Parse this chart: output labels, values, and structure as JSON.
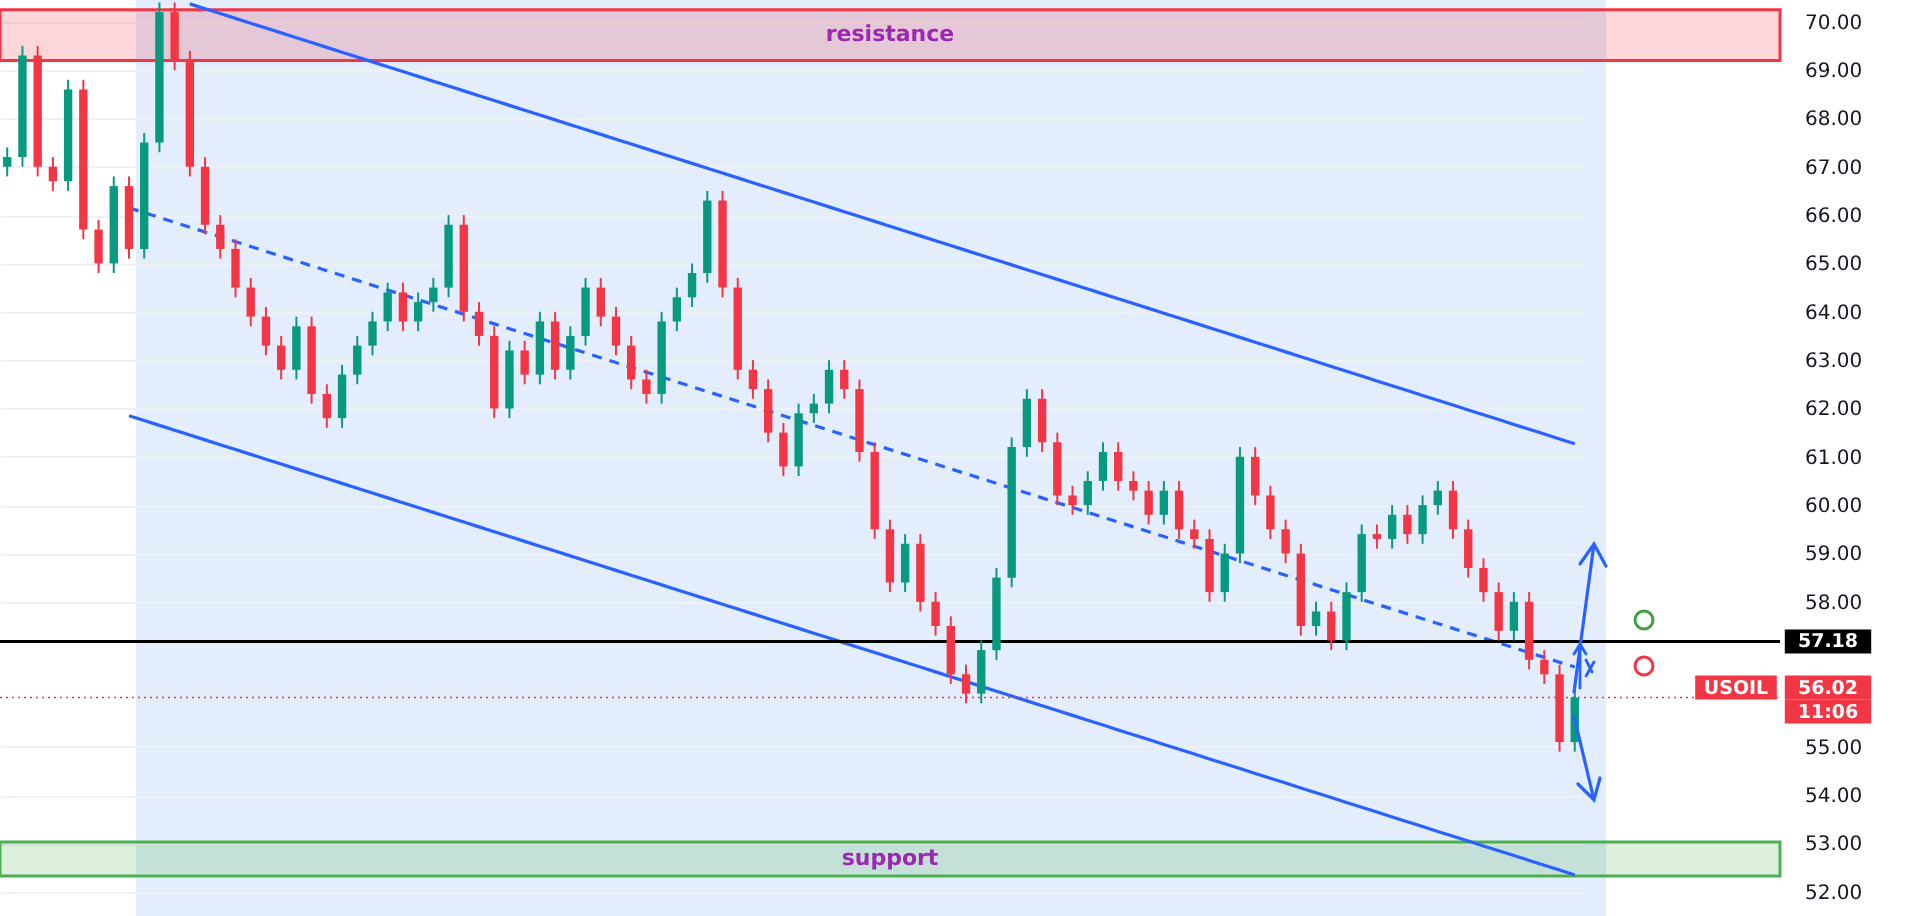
{
  "chart_data": {
    "type": "candlestick",
    "categories": [
      null,
      null,
      null,
      null,
      null,
      null,
      null,
      null,
      null,
      null,
      null,
      null,
      null,
      null,
      null,
      null,
      null,
      null,
      null,
      null,
      null,
      null,
      null,
      null,
      null,
      null,
      null,
      null,
      null,
      null,
      null,
      null,
      null,
      null,
      null,
      null,
      null,
      null,
      null,
      null,
      null,
      null,
      null,
      null,
      null,
      null,
      null,
      null,
      null,
      null,
      null,
      null,
      null,
      null,
      null,
      null,
      null,
      null,
      null,
      null,
      null,
      null,
      null,
      null,
      null,
      null,
      null,
      null,
      null,
      null,
      null,
      null,
      null,
      null,
      null,
      null,
      null,
      null,
      null,
      null,
      null,
      null,
      null,
      null,
      null,
      null,
      null,
      null,
      null,
      null,
      null,
      null,
      null,
      null,
      null,
      null,
      null,
      null,
      null,
      null,
      null,
      null,
      null,
      null
    ],
    "ohlc": [
      [
        67.0,
        67.4,
        66.8,
        67.2
      ],
      [
        67.2,
        69.5,
        67.0,
        69.3
      ],
      [
        69.3,
        69.5,
        66.8,
        67.0
      ],
      [
        67.0,
        67.2,
        66.5,
        66.7
      ],
      [
        66.7,
        68.8,
        66.5,
        68.6
      ],
      [
        68.6,
        68.8,
        65.5,
        65.7
      ],
      [
        65.7,
        65.9,
        64.8,
        65.0
      ],
      [
        65.0,
        66.8,
        64.8,
        66.6
      ],
      [
        66.6,
        66.8,
        65.1,
        65.3
      ],
      [
        65.3,
        67.7,
        65.1,
        67.5
      ],
      [
        67.5,
        70.4,
        67.3,
        70.2
      ],
      [
        70.2,
        70.4,
        69.0,
        69.2
      ],
      [
        69.2,
        69.4,
        66.8,
        67.0
      ],
      [
        67.0,
        67.2,
        65.6,
        65.8
      ],
      [
        65.8,
        66.0,
        65.1,
        65.3
      ],
      [
        65.3,
        65.5,
        64.3,
        64.5
      ],
      [
        64.5,
        64.7,
        63.7,
        63.9
      ],
      [
        63.9,
        64.1,
        63.1,
        63.3
      ],
      [
        63.3,
        63.5,
        62.6,
        62.8
      ],
      [
        62.8,
        63.9,
        62.6,
        63.7
      ],
      [
        63.7,
        63.9,
        62.1,
        62.3
      ],
      [
        62.3,
        62.5,
        61.6,
        61.8
      ],
      [
        61.8,
        62.9,
        61.6,
        62.7
      ],
      [
        62.7,
        63.5,
        62.5,
        63.3
      ],
      [
        63.3,
        64.0,
        63.1,
        63.8
      ],
      [
        63.8,
        64.6,
        63.6,
        64.4
      ],
      [
        64.4,
        64.6,
        63.6,
        63.8
      ],
      [
        63.8,
        64.4,
        63.6,
        64.2
      ],
      [
        64.2,
        64.7,
        64.0,
        64.5
      ],
      [
        64.5,
        66.0,
        64.3,
        65.8
      ],
      [
        65.8,
        66.0,
        63.8,
        64.0
      ],
      [
        64.0,
        64.2,
        63.3,
        63.5
      ],
      [
        63.5,
        63.7,
        61.8,
        62.0
      ],
      [
        62.0,
        63.4,
        61.8,
        63.2
      ],
      [
        63.2,
        63.4,
        62.5,
        62.7
      ],
      [
        62.7,
        64.0,
        62.5,
        63.8
      ],
      [
        63.8,
        64.0,
        62.6,
        62.8
      ],
      [
        62.8,
        63.7,
        62.6,
        63.5
      ],
      [
        63.5,
        64.7,
        63.3,
        64.5
      ],
      [
        64.5,
        64.7,
        63.7,
        63.9
      ],
      [
        63.9,
        64.1,
        63.1,
        63.3
      ],
      [
        63.3,
        63.5,
        62.4,
        62.6
      ],
      [
        62.6,
        62.8,
        62.1,
        62.3
      ],
      [
        62.3,
        64.0,
        62.1,
        63.8
      ],
      [
        63.8,
        64.5,
        63.6,
        64.3
      ],
      [
        64.3,
        65.0,
        64.1,
        64.8
      ],
      [
        64.8,
        66.5,
        64.6,
        66.3
      ],
      [
        66.3,
        66.5,
        64.3,
        64.5
      ],
      [
        64.5,
        64.7,
        62.6,
        62.8
      ],
      [
        62.8,
        63.0,
        62.2,
        62.4
      ],
      [
        62.4,
        62.6,
        61.3,
        61.5
      ],
      [
        61.5,
        61.7,
        60.6,
        60.8
      ],
      [
        60.8,
        62.1,
        60.6,
        61.9
      ],
      [
        61.9,
        62.3,
        61.7,
        62.1
      ],
      [
        62.1,
        63.0,
        61.9,
        62.8
      ],
      [
        62.8,
        63.0,
        62.2,
        62.4
      ],
      [
        62.4,
        62.6,
        60.9,
        61.1
      ],
      [
        61.1,
        61.3,
        59.3,
        59.5
      ],
      [
        59.5,
        59.7,
        58.2,
        58.4
      ],
      [
        58.4,
        59.4,
        58.2,
        59.2
      ],
      [
        59.2,
        59.4,
        57.8,
        58.0
      ],
      [
        58.0,
        58.2,
        57.3,
        57.5
      ],
      [
        57.5,
        57.7,
        56.3,
        56.5
      ],
      [
        56.5,
        56.7,
        55.9,
        56.1
      ],
      [
        56.1,
        57.2,
        55.9,
        57.0
      ],
      [
        57.0,
        58.7,
        56.8,
        58.5
      ],
      [
        58.5,
        61.4,
        58.3,
        61.2
      ],
      [
        61.2,
        62.4,
        61.0,
        62.2
      ],
      [
        62.2,
        62.4,
        61.1,
        61.3
      ],
      [
        61.3,
        61.5,
        60.0,
        60.2
      ],
      [
        60.2,
        60.4,
        59.8,
        60.0
      ],
      [
        60.0,
        60.7,
        59.8,
        60.5
      ],
      [
        60.5,
        61.3,
        60.3,
        61.1
      ],
      [
        61.1,
        61.3,
        60.3,
        60.5
      ],
      [
        60.5,
        60.7,
        60.1,
        60.3
      ],
      [
        60.3,
        60.5,
        59.6,
        59.8
      ],
      [
        59.8,
        60.5,
        59.6,
        60.3
      ],
      [
        60.3,
        60.5,
        59.3,
        59.5
      ],
      [
        59.5,
        59.7,
        59.1,
        59.3
      ],
      [
        59.3,
        59.5,
        58.0,
        58.2
      ],
      [
        58.2,
        59.2,
        58.0,
        59.0
      ],
      [
        59.0,
        61.2,
        58.8,
        61.0
      ],
      [
        61.0,
        61.2,
        60.0,
        60.2
      ],
      [
        60.2,
        60.4,
        59.3,
        59.5
      ],
      [
        59.5,
        59.7,
        58.8,
        59.0
      ],
      [
        59.0,
        59.2,
        57.3,
        57.5
      ],
      [
        57.5,
        58.0,
        57.3,
        57.8
      ],
      [
        57.8,
        58.0,
        57.0,
        57.2
      ],
      [
        57.2,
        58.4,
        57.0,
        58.2
      ],
      [
        58.2,
        59.6,
        58.0,
        59.4
      ],
      [
        59.4,
        59.6,
        59.1,
        59.3
      ],
      [
        59.3,
        60.0,
        59.1,
        59.8
      ],
      [
        59.8,
        60.0,
        59.2,
        59.4
      ],
      [
        59.4,
        60.2,
        59.2,
        60.0
      ],
      [
        60.0,
        60.5,
        59.8,
        60.3
      ],
      [
        60.3,
        60.5,
        59.3,
        59.5
      ],
      [
        59.5,
        59.7,
        58.5,
        58.7
      ],
      [
        58.7,
        58.9,
        58.0,
        58.2
      ],
      [
        58.2,
        58.4,
        57.2,
        57.4
      ],
      [
        57.4,
        58.2,
        57.2,
        58.0
      ],
      [
        58.0,
        58.2,
        56.6,
        56.8
      ],
      [
        56.8,
        57.0,
        56.3,
        56.5
      ],
      [
        56.5,
        56.7,
        54.9,
        55.1
      ],
      [
        55.1,
        56.2,
        54.9,
        56.02
      ]
    ],
    "series": [
      {
        "type": "line",
        "color": "#2962ff",
        "values": [
          null,
          null,
          null,
          null,
          null,
          null,
          null,
          null,
          null,
          null,
          null,
          null,
          70.37,
          70.27,
          70.17,
          70.07,
          69.97,
          69.87,
          69.77,
          69.67,
          69.57,
          69.47,
          69.37,
          69.27,
          69.17,
          69.07,
          68.97,
          68.87,
          68.77,
          68.67,
          68.57,
          68.47,
          68.37,
          68.27,
          68.17,
          68.07,
          67.97,
          67.87,
          67.77,
          67.67,
          67.57,
          67.47,
          67.37,
          67.27,
          67.17,
          67.07,
          66.97,
          66.87,
          66.77,
          66.67,
          66.57,
          66.47,
          66.37,
          66.27,
          66.17,
          66.07,
          65.97,
          65.87,
          65.77,
          65.67,
          65.57,
          65.47,
          65.37,
          65.27,
          65.17,
          65.07,
          64.97,
          64.87,
          64.77,
          64.67,
          64.57,
          64.47,
          64.37,
          64.27,
          64.17,
          64.07,
          63.97,
          63.87,
          63.77,
          63.67,
          63.57,
          63.47,
          63.37,
          63.27,
          63.17,
          63.07,
          62.97,
          62.87,
          62.77,
          62.67,
          62.57,
          62.47,
          62.37,
          62.27,
          62.17,
          62.07,
          61.97,
          61.87,
          61.77,
          61.67,
          61.57,
          61.47,
          61.37,
          61.27
        ]
      },
      {
        "type": "line",
        "color": "#2962ff",
        "values": [
          null,
          null,
          null,
          null,
          null,
          null,
          null,
          null,
          61.85,
          61.75,
          61.65,
          61.55,
          61.45,
          61.35,
          61.25,
          61.15,
          61.05,
          60.95,
          60.85,
          60.75,
          60.65,
          60.55,
          60.45,
          60.35,
          60.25,
          60.15,
          60.05,
          59.95,
          59.85,
          59.75,
          59.65,
          59.55,
          59.45,
          59.35,
          59.25,
          59.15,
          59.05,
          58.95,
          58.85,
          58.75,
          58.65,
          58.55,
          58.45,
          58.35,
          58.25,
          58.15,
          58.05,
          57.95,
          57.85,
          57.75,
          57.65,
          57.55,
          57.45,
          57.35,
          57.25,
          57.15,
          57.05,
          56.95,
          56.85,
          56.75,
          56.65,
          56.55,
          56.45,
          56.35,
          56.25,
          56.15,
          56.05,
          55.95,
          55.85,
          55.75,
          55.65,
          55.55,
          55.45,
          55.35,
          55.25,
          55.15,
          55.05,
          54.95,
          54.85,
          54.75,
          54.65,
          54.55,
          54.45,
          54.35,
          54.25,
          54.15,
          54.05,
          53.95,
          53.85,
          53.75,
          53.65,
          53.55,
          53.45,
          53.35,
          53.25,
          53.15,
          53.05,
          52.95,
          52.85,
          52.75,
          52.65,
          52.55,
          52.45,
          52.35
        ]
      },
      {
        "type": "line",
        "color": "#2962ff",
        "line_style": "dashed",
        "values": [
          null,
          null,
          null,
          null,
          null,
          null,
          null,
          null,
          66.15,
          66.05,
          65.95,
          65.85,
          65.75,
          65.65,
          65.55,
          65.45,
          65.35,
          65.25,
          65.15,
          65.05,
          64.95,
          64.85,
          64.75,
          64.65,
          64.55,
          64.45,
          64.35,
          64.25,
          64.15,
          64.05,
          63.95,
          63.85,
          63.75,
          63.65,
          63.55,
          63.45,
          63.35,
          63.25,
          63.15,
          63.05,
          62.95,
          62.85,
          62.75,
          62.65,
          62.55,
          62.45,
          62.35,
          62.25,
          62.15,
          62.05,
          61.95,
          61.85,
          61.75,
          61.65,
          61.55,
          61.45,
          61.35,
          61.25,
          61.15,
          61.05,
          60.95,
          60.85,
          60.75,
          60.65,
          60.55,
          60.45,
          60.35,
          60.25,
          60.15,
          60.05,
          59.95,
          59.85,
          59.75,
          59.65,
          59.55,
          59.45,
          59.35,
          59.25,
          59.15,
          59.05,
          58.95,
          58.85,
          58.75,
          58.65,
          58.55,
          58.45,
          58.35,
          58.25,
          58.15,
          58.05,
          57.95,
          57.85,
          57.75,
          57.65,
          57.55,
          57.45,
          57.35,
          57.25,
          57.15,
          57.05,
          56.95,
          56.85,
          56.75,
          56.65
        ]
      }
    ],
    "bands": [
      {
        "axis": "y",
        "from": 69.2,
        "to": 70.25,
        "label": "resistance",
        "color": "#f23645"
      },
      {
        "axis": "y",
        "from": 52.33,
        "to": 53.03,
        "label": "support",
        "color": "#4caf50"
      }
    ],
    "ref_lines": [
      {
        "axis": "y",
        "value": 57.18,
        "label": "57.18",
        "color": "#000000",
        "line_style": "solid"
      },
      {
        "axis": "y",
        "value": 56.02,
        "label": "56.02",
        "color": "#f23645",
        "line_style": "dotted"
      }
    ],
    "annotations": [
      "USOIL",
      "11:06"
    ],
    "ylim": [
      51.5,
      70.45
    ],
    "yticks": [
      {
        "value": 52,
        "label": "52.00"
      },
      {
        "value": 53,
        "label": "53.00"
      },
      {
        "value": 54,
        "label": "54.00"
      },
      {
        "value": 55,
        "label": "55.00"
      },
      {
        "value": 58,
        "label": "58.00"
      },
      {
        "value": 59,
        "label": "59.00"
      },
      {
        "value": 60,
        "label": "60.00"
      },
      {
        "value": 61,
        "label": "61.00"
      },
      {
        "value": 62,
        "label": "62.00"
      },
      {
        "value": 63,
        "label": "63.00"
      },
      {
        "value": 64,
        "label": "64.00"
      },
      {
        "value": 65,
        "label": "65.00"
      },
      {
        "value": 66,
        "label": "66.00"
      },
      {
        "value": 67,
        "label": "67.00"
      },
      {
        "value": 68,
        "label": "68.00"
      },
      {
        "value": 69,
        "label": "69.00"
      },
      {
        "value": 70,
        "label": "70.00"
      }
    ],
    "tick_labels": "y",
    "grid": "y"
  }
}
